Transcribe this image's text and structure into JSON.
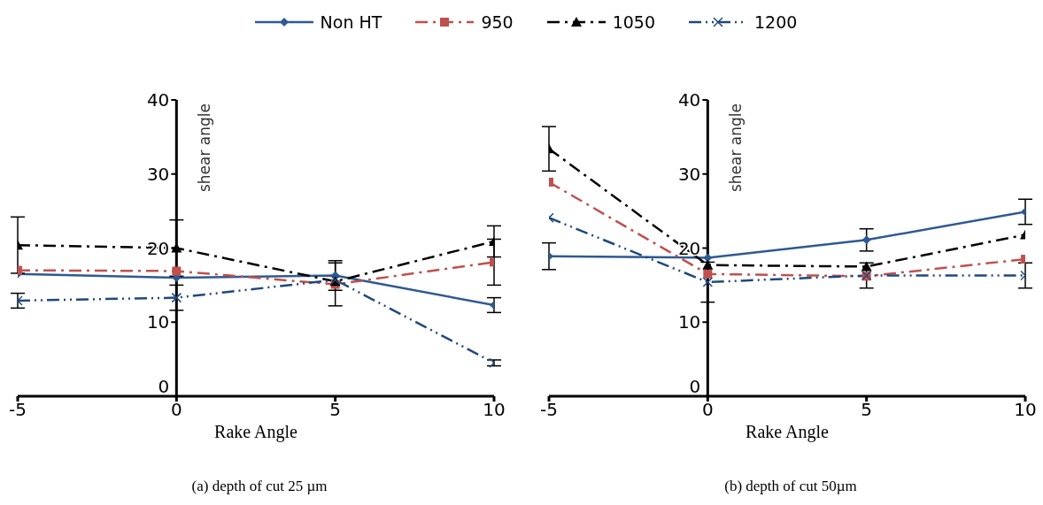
{
  "chart_data": [
    {
      "type": "line",
      "title": "(a) depth of cut 25 µm",
      "xlabel": "Rake Angle",
      "ylabel": "shear angle",
      "x": [
        -5,
        0,
        5,
        10
      ],
      "xlim": [
        -5,
        10
      ],
      "xticks": [
        -5,
        0,
        5,
        10
      ],
      "ylim": [
        0,
        40
      ],
      "yticks": [
        0,
        10,
        20,
        30,
        40
      ],
      "legend": "top",
      "series": [
        {
          "name": "Non HT",
          "color": "#2e5a93",
          "marker": "diamond",
          "line_style": "solid",
          "values": [
            16.5,
            16.0,
            16.3,
            12.3
          ],
          "errors": [
            null,
            null,
            2.0,
            1.0
          ]
        },
        {
          "name": "950",
          "color": "#c0504d",
          "marker": "square",
          "line_style": "dashed",
          "values": [
            17.0,
            16.9,
            15.1,
            18.1
          ],
          "errors": [
            null,
            null,
            2.9,
            3.1
          ]
        },
        {
          "name": "1050",
          "color": "#000000",
          "marker": "triangle",
          "line_style": "dashed",
          "values": [
            20.4,
            20.0,
            15.5,
            20.9
          ],
          "errors": [
            3.8,
            3.8,
            null,
            2.1
          ]
        },
        {
          "name": "1200",
          "color": "#1f497d",
          "marker": "cross",
          "line_style": "dotted",
          "values": [
            12.9,
            13.3,
            15.7,
            4.5
          ],
          "errors": [
            1.0,
            1.7,
            null,
            0.4
          ]
        }
      ]
    },
    {
      "type": "line",
      "title": "(b) depth of cut 50µm",
      "xlabel": "Rake Angle",
      "ylabel": "shear angle",
      "x": [
        -5,
        0,
        5,
        10
      ],
      "xlim": [
        -5,
        10
      ],
      "xticks": [
        -5,
        0,
        5,
        10
      ],
      "ylim": [
        0,
        40
      ],
      "yticks": [
        0,
        10,
        20,
        30,
        40
      ],
      "series": [
        {
          "color": "#2e5a93",
          "marker": "diamond",
          "line_style": "solid",
          "values": [
            18.9,
            18.7,
            21.1,
            24.9
          ],
          "errors": [
            1.8,
            null,
            1.5,
            1.7
          ]
        },
        {
          "color": "#c0504d",
          "marker": "square",
          "line_style": "dashed",
          "values": [
            28.9,
            16.5,
            16.2,
            18.5
          ]
        },
        {
          "color": "#000000",
          "marker": "triangle",
          "line_style": "dashed",
          "values": [
            33.4,
            17.7,
            17.5,
            21.8
          ],
          "errors": [
            3.0,
            null,
            null,
            null
          ]
        },
        {
          "color": "#1f497d",
          "marker": "cross",
          "line_style": "dotted",
          "values": [
            24.1,
            15.4,
            16.3,
            16.3
          ],
          "errors": [
            null,
            2.7,
            1.7,
            1.7
          ]
        }
      ]
    }
  ]
}
